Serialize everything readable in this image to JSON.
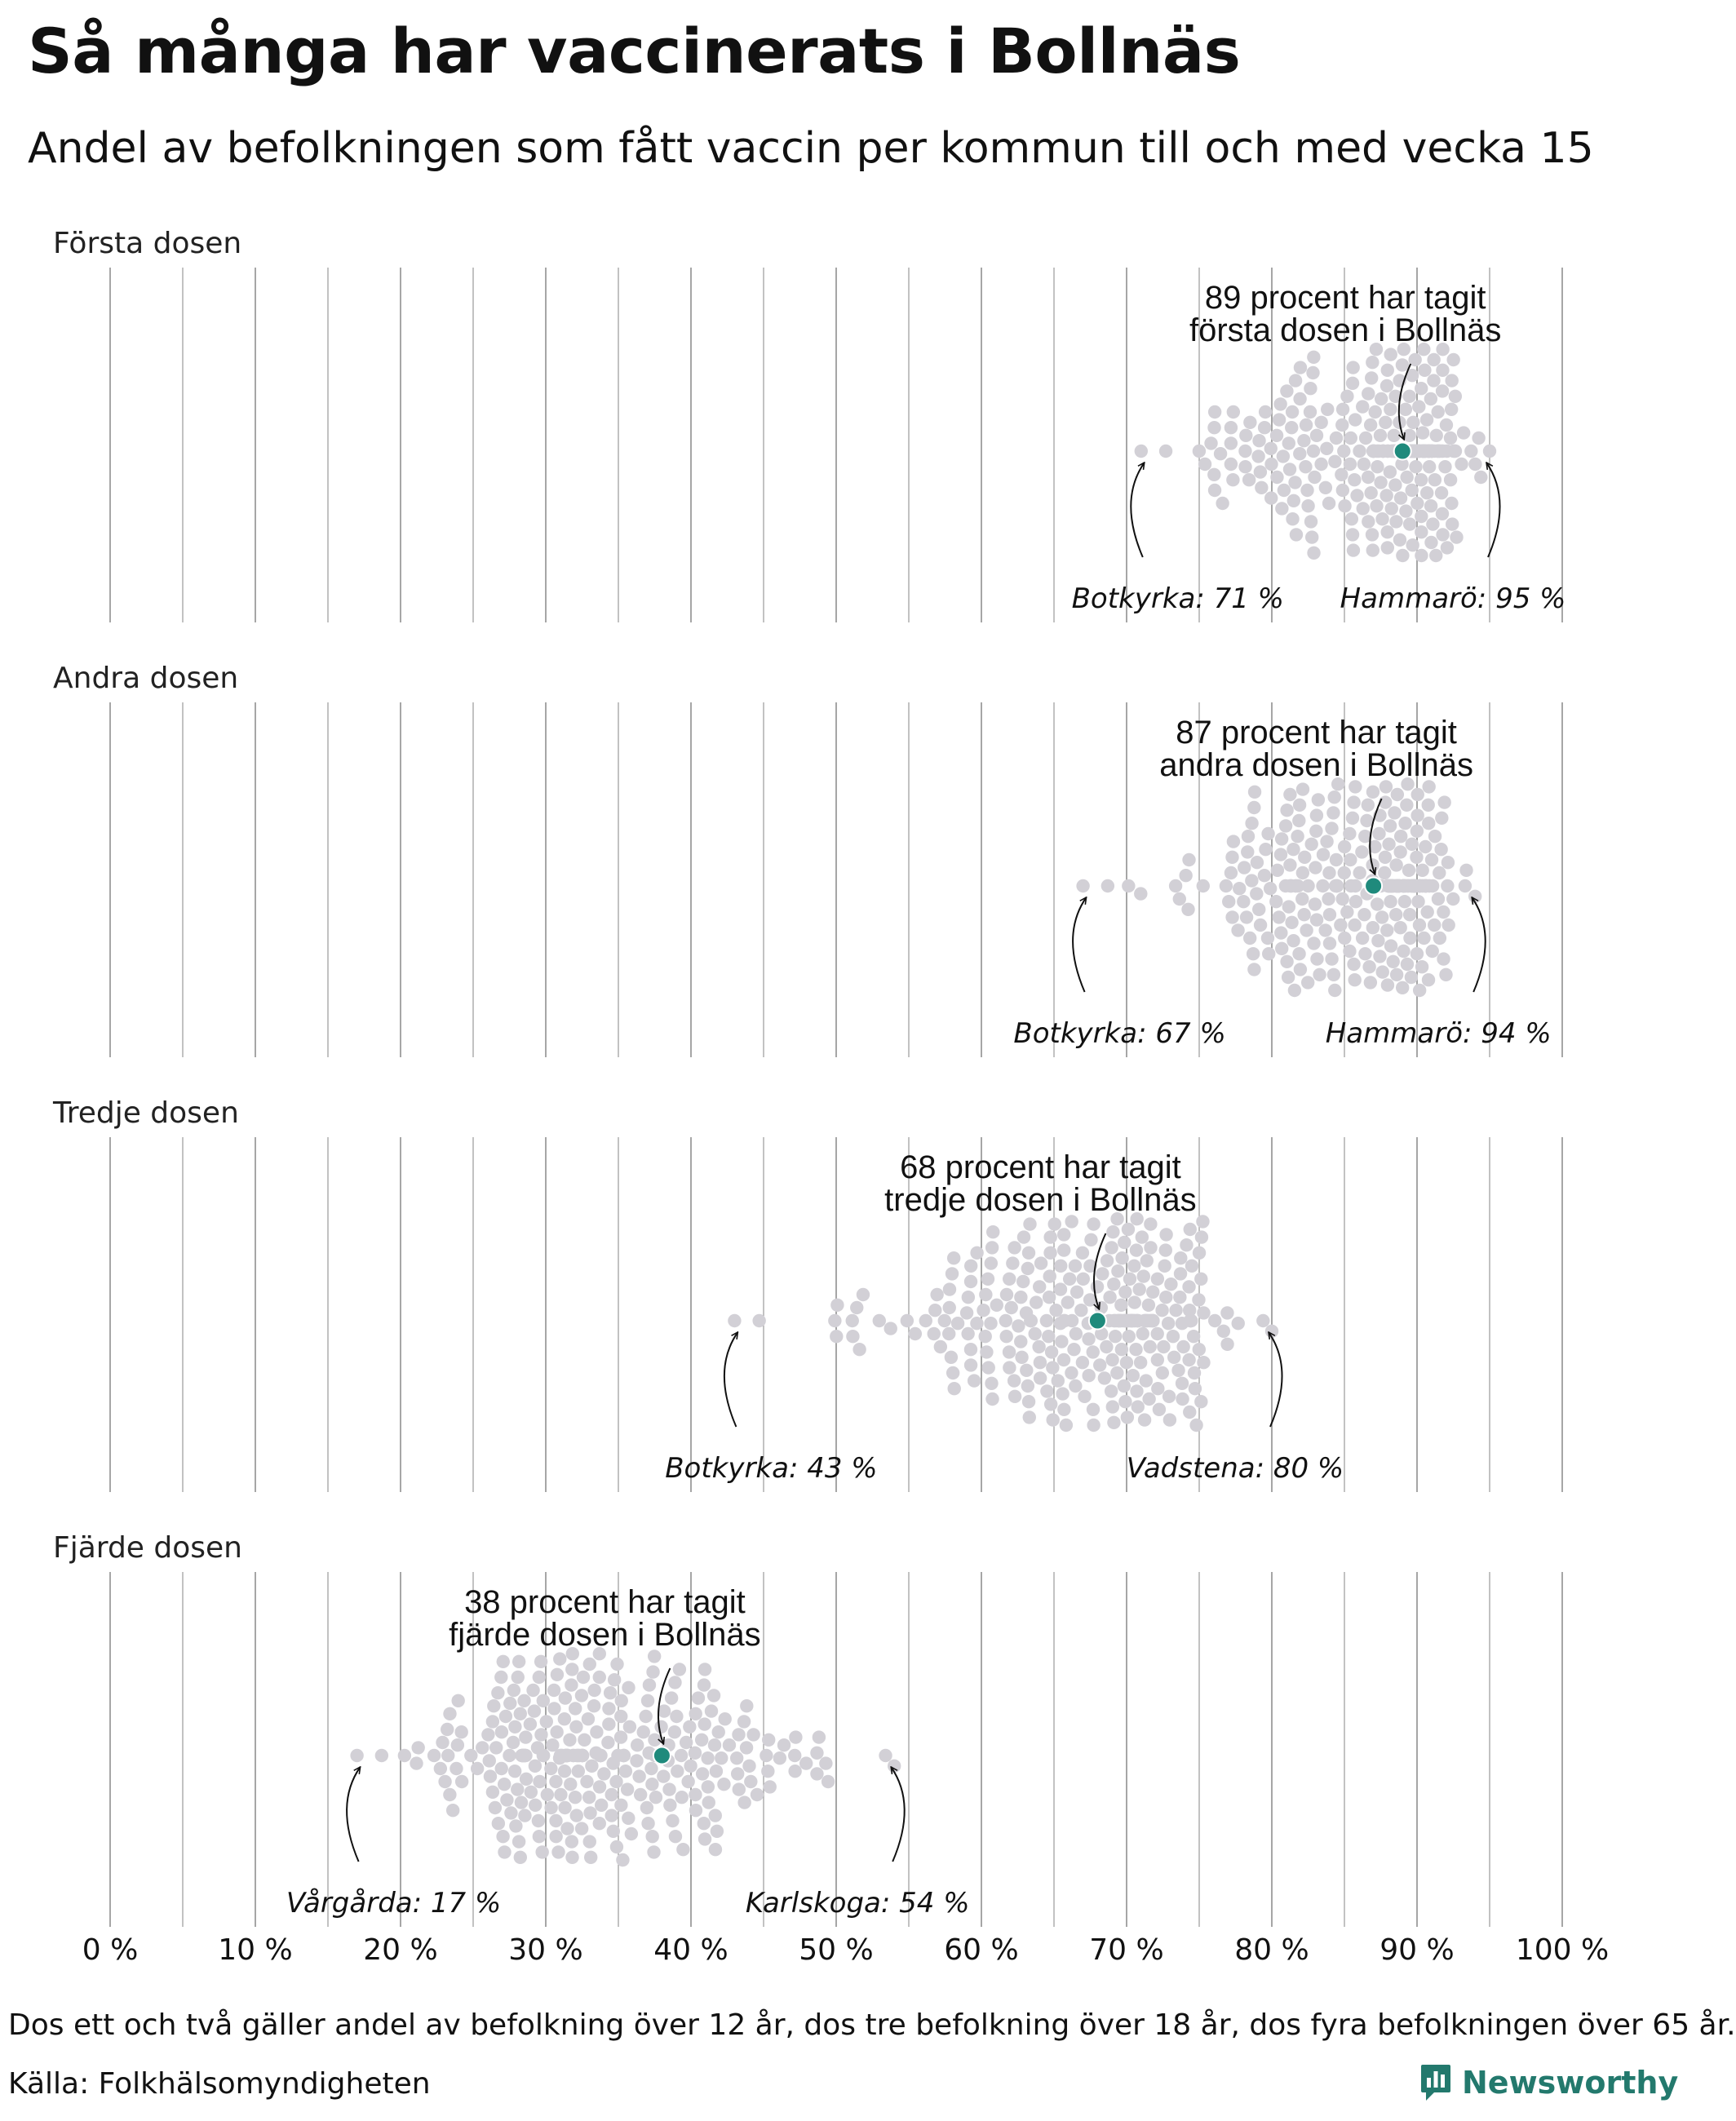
{
  "header": {
    "title": "Så många har vaccinerats i Bollnäs",
    "subtitle": "Andel av befolkningen som fått vaccin per kommun till och med vecka 15"
  },
  "chart_data": {
    "type": "scatter",
    "subtype": "beeswarm",
    "xlim": [
      0,
      100
    ],
    "xticks": [
      "0 %",
      "10 %",
      "20 %",
      "30 %",
      "40 %",
      "50 %",
      "60 %",
      "70 %",
      "80 %",
      "90 %",
      "100 %"
    ],
    "grid": "vertical lines every 5 %",
    "colors": {
      "highlight": "#1f8a7c",
      "others": "#d2d0d6",
      "grid": "#909090",
      "brand": "#23796d"
    },
    "panels": [
      {
        "title": "Första dosen",
        "distribution": {
          "min": 71,
          "max": 95,
          "center": 89.5,
          "n": 290
        },
        "highlight": {
          "name": "Bollnäs",
          "value": 89,
          "label_lines": [
            "89 procent har tagit",
            "första dosen i Bollnäs"
          ]
        },
        "extremes": [
          {
            "name": "Botkyrka",
            "value": 71,
            "label": "Botkyrka: 71 %"
          },
          {
            "name": "Hammarö",
            "value": 95,
            "label": "Hammarö: 95 %"
          }
        ]
      },
      {
        "title": "Andra dosen",
        "distribution": {
          "min": 67,
          "max": 94,
          "center": 88,
          "n": 290
        },
        "highlight": {
          "name": "Bollnäs",
          "value": 87,
          "label_lines": [
            "87 procent har tagit",
            "andra dosen i Bollnäs"
          ]
        },
        "extremes": [
          {
            "name": "Botkyrka",
            "value": 67,
            "label": "Botkyrka: 67 %"
          },
          {
            "name": "Hammarö",
            "value": 94,
            "label": "Hammarö: 94 %"
          }
        ]
      },
      {
        "title": "Tredje dosen",
        "distribution": {
          "min": 43,
          "max": 80,
          "center": 69,
          "n": 290
        },
        "highlight": {
          "name": "Bollnäs",
          "value": 68,
          "label_lines": [
            "68 procent har tagit",
            "tredje dosen i Bollnäs"
          ]
        },
        "extremes": [
          {
            "name": "Botkyrka",
            "value": 43,
            "label": "Botkyrka: 43 %"
          },
          {
            "name": "Vadstena",
            "value": 80,
            "label": "Vadstena: 80 %"
          }
        ]
      },
      {
        "title": "Fjärde dosen",
        "distribution": {
          "min": 17,
          "max": 54,
          "center": 33,
          "n": 290
        },
        "highlight": {
          "name": "Bollnäs",
          "value": 38,
          "label_lines": [
            "38 procent har tagit",
            "fjärde dosen i Bollnäs"
          ]
        },
        "extremes": [
          {
            "name": "Vårgårda",
            "value": 17,
            "label": "Vårgårda: 17 %"
          },
          {
            "name": "Karlskoga",
            "value": 54,
            "label": "Karlskoga: 54 %"
          }
        ]
      }
    ]
  },
  "footer": {
    "note": "Dos ett och två gäller andel av befolkning över 12 år, dos tre befolkning över 18 år, dos fyra befolkningen över 65 år.",
    "source": "Källa: Folkhälsomyndigheten",
    "brand": "Newsworthy"
  }
}
